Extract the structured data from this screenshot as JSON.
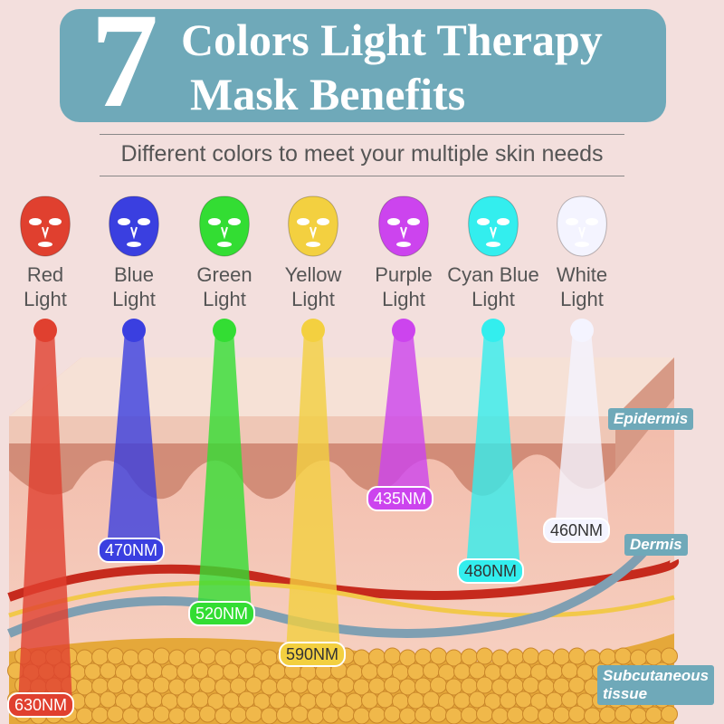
{
  "header": {
    "number": "7",
    "title_line1": "Colors Light Therapy",
    "title_line2": "Mask Benefits",
    "background": "#6fa9b9"
  },
  "subtitle": "Different colors to meet your multiple skin needs",
  "lights": [
    {
      "line1": "Red",
      "line2": "Light",
      "wavelength": "630NM",
      "color": "#e0402f",
      "text_color": "#ffffff"
    },
    {
      "line1": "Blue",
      "line2": "Light",
      "wavelength": "470NM",
      "color": "#3a3fe0",
      "text_color": "#ffffff"
    },
    {
      "line1": "Green",
      "line2": "Light",
      "wavelength": "520NM",
      "color": "#33dd33",
      "text_color": "#ffffff"
    },
    {
      "line1": "Yellow",
      "line2": "Light",
      "wavelength": "590NM",
      "color": "#f3d040",
      "text_color": "#333333"
    },
    {
      "line1": "Purple",
      "line2": "Light",
      "wavelength": "435NM",
      "color": "#cc44ee",
      "text_color": "#ffffff"
    },
    {
      "line1": "Cyan Blue",
      "line2": "Light",
      "wavelength": "480NM",
      "color": "#33eeee",
      "text_color": "#333333"
    },
    {
      "line1": "White",
      "line2": "Light",
      "wavelength": "460NM",
      "color": "#f4f4ff",
      "text_color": "#333333"
    }
  ],
  "layers": {
    "epidermis": "Epidermis",
    "dermis": "Dermis",
    "subcutaneous_line1": "Subcutaneous",
    "subcutaneous_line2": "tissue"
  }
}
